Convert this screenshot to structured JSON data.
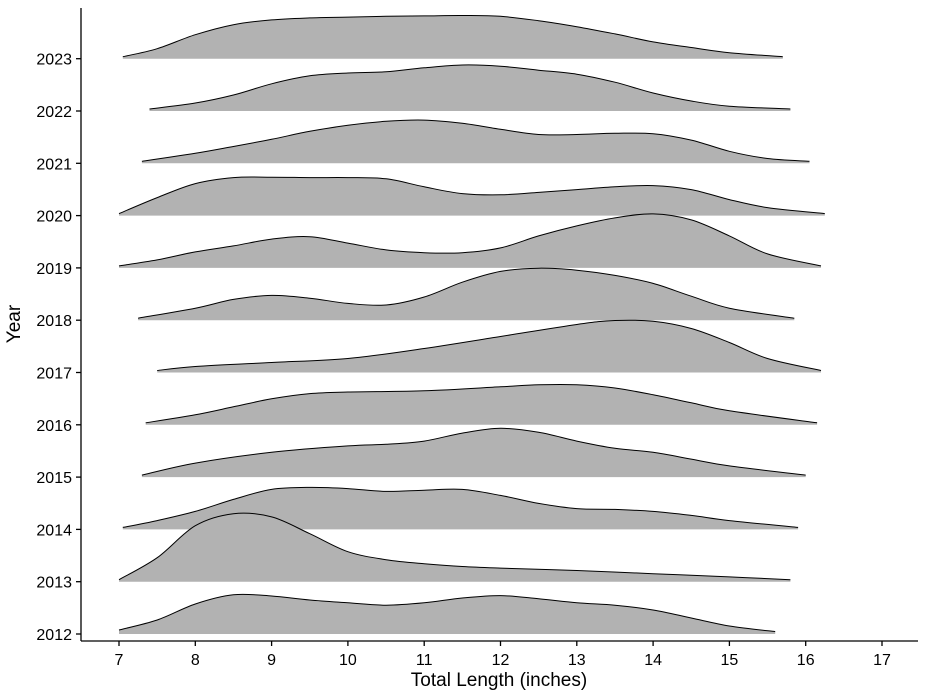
{
  "chart_data": {
    "type": "ridgeline",
    "xlabel": "Total Length (inches)",
    "ylabel": "Year",
    "xlim": [
      6.5,
      17.5
    ],
    "xticks": [
      7,
      8,
      9,
      10,
      11,
      12,
      13,
      14,
      15,
      16,
      17
    ],
    "categories": [
      "2012",
      "2013",
      "2014",
      "2015",
      "2016",
      "2017",
      "2018",
      "2019",
      "2020",
      "2021",
      "2022",
      "2023"
    ],
    "grid": false,
    "fill_color": "#b2b2b2",
    "line_color": "#000000",
    "series": [
      {
        "name": "2012",
        "points": [
          [
            7.0,
            0.1
          ],
          [
            7.5,
            0.35
          ],
          [
            8.0,
            0.75
          ],
          [
            8.5,
            0.98
          ],
          [
            9.0,
            0.95
          ],
          [
            9.5,
            0.85
          ],
          [
            10.0,
            0.78
          ],
          [
            10.5,
            0.72
          ],
          [
            11.0,
            0.78
          ],
          [
            11.5,
            0.9
          ],
          [
            12.0,
            0.96
          ],
          [
            12.5,
            0.88
          ],
          [
            13.0,
            0.78
          ],
          [
            13.5,
            0.72
          ],
          [
            14.0,
            0.6
          ],
          [
            14.5,
            0.4
          ],
          [
            15.0,
            0.2
          ],
          [
            15.6,
            0.06
          ]
        ]
      },
      {
        "name": "2013",
        "points": [
          [
            7.0,
            0.05
          ],
          [
            7.5,
            0.6
          ],
          [
            8.0,
            1.4
          ],
          [
            8.5,
            1.7
          ],
          [
            9.0,
            1.62
          ],
          [
            9.5,
            1.2
          ],
          [
            10.0,
            0.75
          ],
          [
            10.5,
            0.55
          ],
          [
            11.0,
            0.45
          ],
          [
            11.5,
            0.38
          ],
          [
            12.0,
            0.34
          ],
          [
            13.0,
            0.28
          ],
          [
            14.0,
            0.2
          ],
          [
            15.0,
            0.12
          ],
          [
            15.8,
            0.05
          ]
        ]
      },
      {
        "name": "2014",
        "points": [
          [
            7.05,
            0.05
          ],
          [
            7.5,
            0.22
          ],
          [
            8.0,
            0.45
          ],
          [
            8.5,
            0.75
          ],
          [
            9.0,
            1.0
          ],
          [
            9.5,
            1.05
          ],
          [
            10.0,
            1.02
          ],
          [
            10.5,
            0.95
          ],
          [
            11.0,
            0.98
          ],
          [
            11.5,
            1.0
          ],
          [
            12.0,
            0.85
          ],
          [
            12.5,
            0.65
          ],
          [
            13.0,
            0.52
          ],
          [
            13.5,
            0.5
          ],
          [
            14.0,
            0.45
          ],
          [
            14.5,
            0.35
          ],
          [
            15.0,
            0.22
          ],
          [
            15.9,
            0.05
          ]
        ]
      },
      {
        "name": "2015",
        "points": [
          [
            7.3,
            0.05
          ],
          [
            8.0,
            0.35
          ],
          [
            9.0,
            0.62
          ],
          [
            10.0,
            0.78
          ],
          [
            10.5,
            0.82
          ],
          [
            11.0,
            0.9
          ],
          [
            11.5,
            1.1
          ],
          [
            12.0,
            1.22
          ],
          [
            12.5,
            1.12
          ],
          [
            13.0,
            0.9
          ],
          [
            13.5,
            0.72
          ],
          [
            14.0,
            0.62
          ],
          [
            14.5,
            0.45
          ],
          [
            15.0,
            0.28
          ],
          [
            16.0,
            0.05
          ]
        ]
      },
      {
        "name": "2016",
        "points": [
          [
            7.35,
            0.05
          ],
          [
            8.0,
            0.25
          ],
          [
            8.5,
            0.45
          ],
          [
            9.0,
            0.65
          ],
          [
            9.5,
            0.78
          ],
          [
            10.0,
            0.82
          ],
          [
            11.0,
            0.85
          ],
          [
            12.0,
            0.95
          ],
          [
            12.5,
            1.0
          ],
          [
            13.0,
            1.0
          ],
          [
            13.5,
            0.92
          ],
          [
            14.0,
            0.75
          ],
          [
            14.5,
            0.55
          ],
          [
            15.0,
            0.35
          ],
          [
            16.15,
            0.05
          ]
        ]
      },
      {
        "name": "2017",
        "points": [
          [
            7.5,
            0.05
          ],
          [
            8.0,
            0.15
          ],
          [
            9.0,
            0.25
          ],
          [
            10.0,
            0.35
          ],
          [
            11.0,
            0.6
          ],
          [
            12.0,
            0.9
          ],
          [
            13.0,
            1.2
          ],
          [
            13.5,
            1.3
          ],
          [
            14.0,
            1.28
          ],
          [
            14.5,
            1.1
          ],
          [
            15.0,
            0.75
          ],
          [
            15.5,
            0.35
          ],
          [
            16.2,
            0.05
          ]
        ]
      },
      {
        "name": "2018",
        "points": [
          [
            7.25,
            0.05
          ],
          [
            8.0,
            0.3
          ],
          [
            8.5,
            0.52
          ],
          [
            9.0,
            0.62
          ],
          [
            9.5,
            0.55
          ],
          [
            10.0,
            0.42
          ],
          [
            10.5,
            0.38
          ],
          [
            11.0,
            0.58
          ],
          [
            11.5,
            0.95
          ],
          [
            12.0,
            1.22
          ],
          [
            12.5,
            1.3
          ],
          [
            13.0,
            1.25
          ],
          [
            13.5,
            1.12
          ],
          [
            14.0,
            0.92
          ],
          [
            14.5,
            0.6
          ],
          [
            15.0,
            0.3
          ],
          [
            15.85,
            0.05
          ]
        ]
      },
      {
        "name": "2019",
        "points": [
          [
            7.0,
            0.05
          ],
          [
            7.5,
            0.2
          ],
          [
            8.0,
            0.4
          ],
          [
            8.5,
            0.55
          ],
          [
            9.0,
            0.72
          ],
          [
            9.5,
            0.78
          ],
          [
            10.0,
            0.62
          ],
          [
            10.5,
            0.45
          ],
          [
            11.0,
            0.38
          ],
          [
            11.5,
            0.38
          ],
          [
            12.0,
            0.5
          ],
          [
            12.5,
            0.8
          ],
          [
            13.0,
            1.05
          ],
          [
            13.5,
            1.25
          ],
          [
            14.0,
            1.35
          ],
          [
            14.5,
            1.2
          ],
          [
            15.0,
            0.8
          ],
          [
            15.5,
            0.35
          ],
          [
            16.2,
            0.05
          ]
        ]
      },
      {
        "name": "2020",
        "points": [
          [
            7.0,
            0.05
          ],
          [
            7.5,
            0.45
          ],
          [
            8.0,
            0.8
          ],
          [
            8.5,
            0.95
          ],
          [
            9.0,
            0.96
          ],
          [
            9.5,
            0.95
          ],
          [
            10.0,
            0.95
          ],
          [
            10.5,
            0.92
          ],
          [
            11.0,
            0.72
          ],
          [
            11.5,
            0.55
          ],
          [
            12.0,
            0.52
          ],
          [
            12.5,
            0.58
          ],
          [
            13.0,
            0.65
          ],
          [
            13.5,
            0.72
          ],
          [
            14.0,
            0.75
          ],
          [
            14.5,
            0.65
          ],
          [
            15.0,
            0.4
          ],
          [
            15.5,
            0.2
          ],
          [
            16.25,
            0.05
          ]
        ]
      },
      {
        "name": "2021",
        "points": [
          [
            7.3,
            0.05
          ],
          [
            8.0,
            0.25
          ],
          [
            8.5,
            0.42
          ],
          [
            9.0,
            0.6
          ],
          [
            9.5,
            0.8
          ],
          [
            10.0,
            0.95
          ],
          [
            10.5,
            1.05
          ],
          [
            11.0,
            1.08
          ],
          [
            11.5,
            1.0
          ],
          [
            12.0,
            0.85
          ],
          [
            12.5,
            0.72
          ],
          [
            13.0,
            0.72
          ],
          [
            13.5,
            0.75
          ],
          [
            14.0,
            0.74
          ],
          [
            14.5,
            0.58
          ],
          [
            15.0,
            0.3
          ],
          [
            15.5,
            0.12
          ],
          [
            16.05,
            0.05
          ]
        ]
      },
      {
        "name": "2022",
        "points": [
          [
            7.4,
            0.05
          ],
          [
            8.0,
            0.2
          ],
          [
            8.5,
            0.4
          ],
          [
            9.0,
            0.68
          ],
          [
            9.5,
            0.88
          ],
          [
            10.0,
            0.95
          ],
          [
            10.5,
            0.98
          ],
          [
            11.0,
            1.08
          ],
          [
            11.5,
            1.15
          ],
          [
            12.0,
            1.12
          ],
          [
            12.5,
            1.02
          ],
          [
            13.0,
            0.92
          ],
          [
            13.5,
            0.72
          ],
          [
            14.0,
            0.45
          ],
          [
            14.5,
            0.25
          ],
          [
            15.0,
            0.12
          ],
          [
            15.8,
            0.05
          ]
        ]
      },
      {
        "name": "2023",
        "points": [
          [
            7.05,
            0.05
          ],
          [
            7.5,
            0.25
          ],
          [
            8.0,
            0.6
          ],
          [
            8.5,
            0.85
          ],
          [
            9.0,
            0.97
          ],
          [
            9.5,
            1.02
          ],
          [
            10.0,
            1.04
          ],
          [
            10.5,
            1.06
          ],
          [
            11.0,
            1.07
          ],
          [
            11.5,
            1.08
          ],
          [
            12.0,
            1.06
          ],
          [
            12.5,
            0.95
          ],
          [
            13.0,
            0.8
          ],
          [
            13.5,
            0.62
          ],
          [
            14.0,
            0.42
          ],
          [
            14.5,
            0.28
          ],
          [
            15.0,
            0.15
          ],
          [
            15.7,
            0.05
          ]
        ]
      }
    ]
  }
}
